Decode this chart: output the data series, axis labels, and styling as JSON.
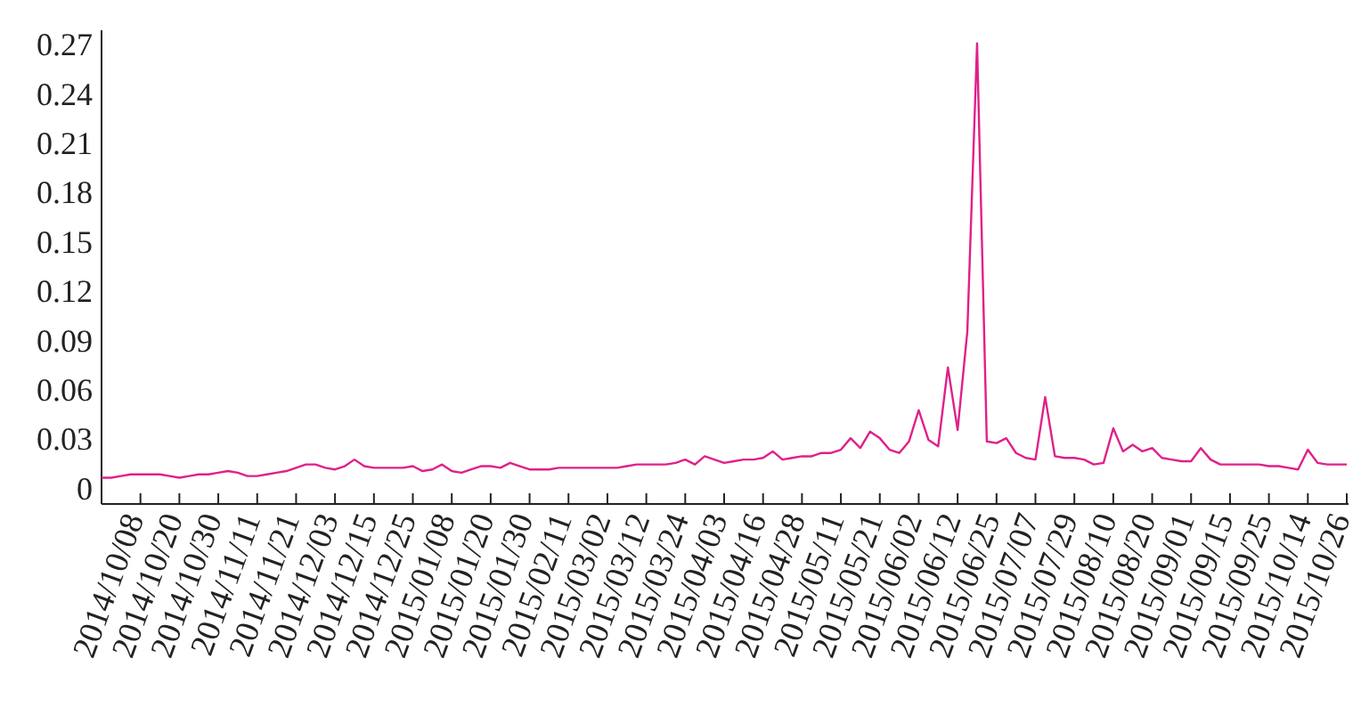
{
  "chart_data": {
    "type": "line",
    "categories": [
      null,
      null,
      null,
      null,
      "2014/10/08",
      null,
      null,
      null,
      "2014/10/20",
      null,
      null,
      null,
      "2014/10/30",
      null,
      null,
      null,
      "2014/11/11",
      null,
      null,
      null,
      "2014/11/21",
      null,
      null,
      null,
      "2014/12/03",
      null,
      null,
      null,
      "2014/12/15",
      null,
      null,
      null,
      "2014/12/25",
      null,
      null,
      null,
      "2015/01/08",
      null,
      null,
      null,
      "2015/01/20",
      null,
      null,
      null,
      "2015/01/30",
      null,
      null,
      null,
      "2015/02/11",
      null,
      null,
      null,
      "2015/03/02",
      null,
      null,
      null,
      "2015/03/12",
      null,
      null,
      null,
      "2015/03/24",
      null,
      null,
      null,
      "2015/04/03",
      null,
      null,
      null,
      "2015/04/16",
      null,
      null,
      null,
      "2015/04/28",
      null,
      null,
      null,
      "2015/05/11",
      null,
      null,
      null,
      "2015/05/21",
      null,
      null,
      null,
      "2015/06/02",
      null,
      null,
      null,
      "2015/06/12",
      null,
      null,
      null,
      "2015/06/25",
      null,
      null,
      null,
      "2015/07/07",
      null,
      null,
      null,
      "2015/07/29",
      null,
      null,
      null,
      "2015/08/10",
      null,
      null,
      null,
      "2015/08/20",
      null,
      null,
      null,
      "2015/09/01",
      null,
      null,
      null,
      "2015/09/15",
      null,
      null,
      null,
      "2015/09/25",
      null,
      null,
      null,
      "2015/10/14",
      null,
      null,
      null,
      "2015/10/26"
    ],
    "series": [
      {
        "color": "#e0208a",
        "values": [
          0.007,
          0.007,
          0.008,
          0.009,
          0.009,
          0.009,
          0.009,
          0.008,
          0.007,
          0.008,
          0.009,
          0.009,
          0.01,
          0.011,
          0.01,
          0.008,
          0.008,
          0.009,
          0.01,
          0.011,
          0.013,
          0.015,
          0.015,
          0.013,
          0.012,
          0.014,
          0.018,
          0.014,
          0.013,
          0.013,
          0.013,
          0.013,
          0.014,
          0.011,
          0.012,
          0.015,
          0.011,
          0.01,
          0.012,
          0.014,
          0.014,
          0.013,
          0.016,
          0.014,
          0.012,
          0.012,
          0.012,
          0.013,
          0.013,
          0.013,
          0.013,
          0.013,
          0.013,
          0.013,
          0.014,
          0.015,
          0.015,
          0.015,
          0.015,
          0.016,
          0.018,
          0.015,
          0.02,
          0.018,
          0.016,
          0.017,
          0.018,
          0.018,
          0.019,
          0.023,
          0.018,
          0.019,
          0.02,
          0.02,
          0.022,
          0.022,
          0.024,
          0.031,
          0.025,
          0.035,
          0.031,
          0.024,
          0.022,
          0.029,
          0.048,
          0.03,
          0.026,
          0.074,
          0.036,
          0.096,
          0.271,
          0.029,
          0.028,
          0.031,
          0.022,
          0.019,
          0.018,
          0.056,
          0.02,
          0.019,
          0.019,
          0.018,
          0.015,
          0.016,
          0.037,
          0.023,
          0.027,
          0.023,
          0.025,
          0.019,
          0.018,
          0.017,
          0.017,
          0.025,
          0.018,
          0.015,
          0.015,
          0.015,
          0.015,
          0.015,
          0.014,
          0.014,
          0.013,
          0.012,
          0.024,
          0.016,
          0.015,
          0.015,
          0.015
        ]
      }
    ],
    "ylim": [
      -0.009,
      0.279
    ],
    "yticks": [
      0,
      0.03,
      0.06,
      0.09,
      0.12,
      0.15,
      0.18,
      0.21,
      0.24,
      0.27
    ],
    "grid": false
  }
}
